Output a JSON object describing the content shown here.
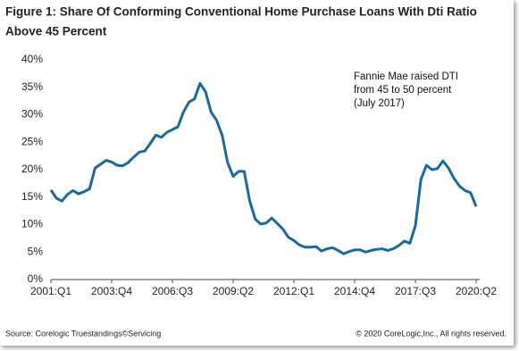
{
  "chart_data": {
    "type": "line",
    "title": [
      "Figure 1: Share Of Conforming Conventional Home Purchase Loans With Dti Ratio",
      "Above 45 Percent"
    ],
    "annotation": [
      "Fannie Mae raised DTI",
      "from 45 to 50 percent",
      "(July 2017)"
    ],
    "source": "Source: Corelogic Truestandings©Servicing",
    "copyright": "© 2020 CoreLogic,Inc., All rights reserved.",
    "categories": [
      "2001:Q1",
      null,
      null,
      null,
      null,
      null,
      null,
      null,
      null,
      null,
      null,
      "2003:Q4",
      null,
      null,
      null,
      null,
      null,
      null,
      null,
      null,
      null,
      null,
      "2006:Q3",
      null,
      null,
      null,
      null,
      null,
      null,
      null,
      null,
      null,
      null,
      "2009:Q2",
      null,
      null,
      null,
      null,
      null,
      null,
      null,
      null,
      null,
      null,
      "2012:Q1",
      null,
      null,
      null,
      null,
      null,
      null,
      null,
      null,
      null,
      null,
      "2014:Q4",
      null,
      null,
      null,
      null,
      null,
      null,
      null,
      null,
      null,
      null,
      "2017:Q3",
      null,
      null,
      null,
      null,
      null,
      null,
      null,
      null,
      null,
      null,
      "2020:Q2"
    ],
    "series": [
      {
        "color": "#1a6aa0",
        "values": [
          16.3,
          14.8,
          14.3,
          15.5,
          16.2,
          15.6,
          16.0,
          16.5,
          20.3,
          21.0,
          21.7,
          21.4,
          20.8,
          20.7,
          21.3,
          22.3,
          23.2,
          23.4,
          24.8,
          26.3,
          25.9,
          26.8,
          27.3,
          27.8,
          30.5,
          32.3,
          32.9,
          35.7,
          34.2,
          30.5,
          29.0,
          26.3,
          21.3,
          18.8,
          19.7,
          19.7,
          14.3,
          11.0,
          10.1,
          10.3,
          11.2,
          10.2,
          9.2,
          7.7,
          7.1,
          6.3,
          5.9,
          5.9,
          6.0,
          5.2,
          5.6,
          5.8,
          5.3,
          4.7,
          5.1,
          5.4,
          5.4,
          5.0,
          5.3,
          5.5,
          5.6,
          5.3,
          5.6,
          6.2,
          7.0,
          6.6,
          9.8,
          18.2,
          20.8,
          20.0,
          20.2,
          21.6,
          20.3,
          18.4,
          17.0,
          16.2,
          15.8,
          13.3
        ]
      }
    ],
    "ylim": [
      0,
      40
    ],
    "yticks": [
      {
        "value": 0,
        "label": "0%"
      },
      {
        "value": 5,
        "label": "5%"
      },
      {
        "value": 10,
        "label": "10%"
      },
      {
        "value": 15,
        "label": "15%"
      },
      {
        "value": 20,
        "label": "20%"
      },
      {
        "value": 25,
        "label": "25%"
      },
      {
        "value": 30,
        "label": "30%"
      },
      {
        "value": 35,
        "label": "35%"
      },
      {
        "value": 40,
        "label": "40%"
      }
    ],
    "grid": false
  }
}
